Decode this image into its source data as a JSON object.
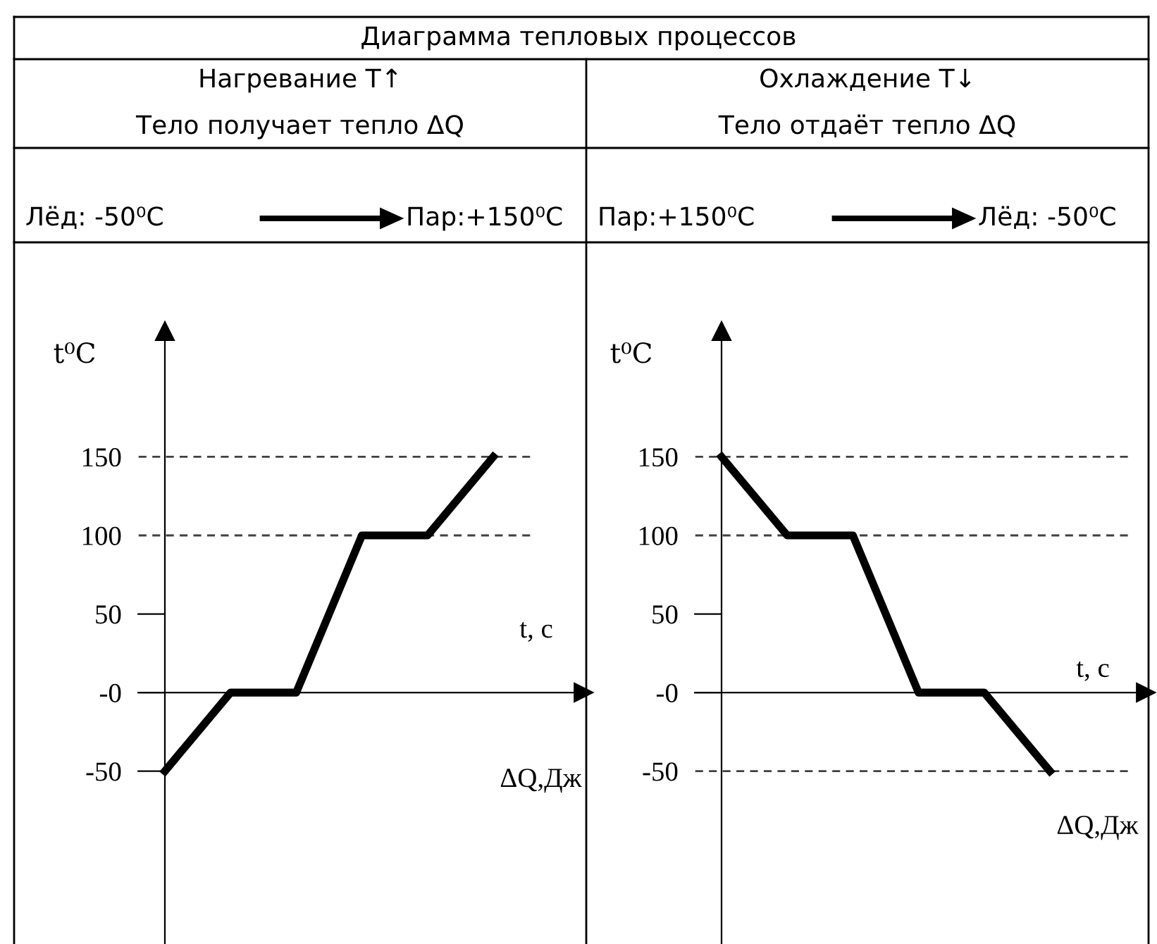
{
  "chart_data": [
    {
      "type": "line",
      "title": "Нагревание Т↑",
      "subtitle": "Тело получает тепло ΔQ",
      "ylabel": "t⁰C",
      "categories": [
        null,
        null,
        null,
        null,
        null,
        null
      ],
      "series": [
        {
          "color": "#000000",
          "values": [
            -50,
            0,
            0,
            100,
            100,
            150
          ]
        }
      ],
      "ylim": [
        -160,
        230
      ],
      "yticks": [
        150,
        100,
        50,
        {
          "value": 0,
          "label": "-0"
        },
        -50
      ],
      "ref_lines": [
        {
          "axis": "y",
          "value": 150,
          "color": "#404040",
          "line_style": "dashed"
        },
        {
          "axis": "y",
          "value": 100,
          "color": "#404040",
          "line_style": "dashed"
        }
      ],
      "annotations": [
        "Диаграмма тепловых процессов",
        "Лёд: -50⁰C",
        "Пар:+150⁰C",
        "t, с",
        "ΔQ,Дж"
      ],
      "marker": "none",
      "line_style": "solid",
      "grid": false,
      "legend": false
    },
    {
      "type": "line",
      "title": "Охлаждение Т↓",
      "subtitle": "Тело отдаёт тепло ΔQ",
      "ylabel": "t⁰C",
      "categories": [
        null,
        null,
        null,
        null,
        null,
        null
      ],
      "series": [
        {
          "color": "#000000",
          "values": [
            150,
            100,
            100,
            0,
            0,
            -50
          ]
        }
      ],
      "ylim": [
        -160,
        230
      ],
      "yticks": [
        150,
        100,
        50,
        {
          "value": 0,
          "label": "-0"
        },
        -50
      ],
      "ref_lines": [
        {
          "axis": "y",
          "value": 150,
          "color": "#404040",
          "line_style": "dashed"
        },
        {
          "axis": "y",
          "value": 100,
          "color": "#404040",
          "line_style": "dashed"
        },
        {
          "axis": "y",
          "value": -50,
          "color": "#404040",
          "line_style": "dashed"
        }
      ],
      "annotations": [
        "Пар:+150⁰C",
        "Лёд: -50⁰C",
        "t, с",
        "ΔQ,Дж"
      ],
      "marker": "none",
      "line_style": "solid",
      "grid": false,
      "legend": false
    }
  ]
}
